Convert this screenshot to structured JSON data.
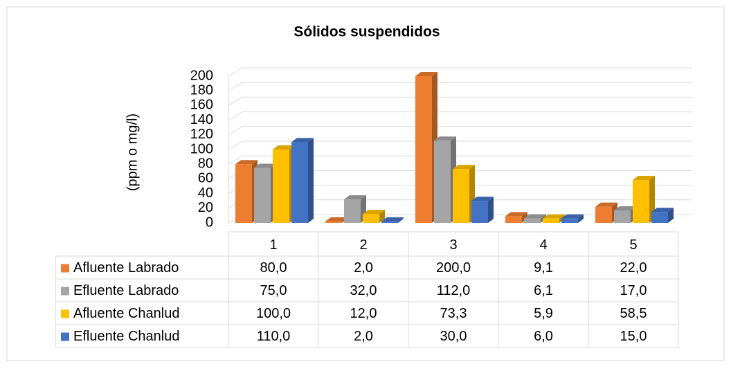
{
  "chart_data": {
    "type": "bar3d",
    "title": "Sólidos suspendidos",
    "ylabel": "(ppm o mg/l)",
    "categories": [
      "1",
      "2",
      "3",
      "4",
      "5"
    ],
    "series": [
      {
        "name": "Afluente Labrado",
        "color": "#ED7D31",
        "values": [
          80.0,
          2.0,
          200.0,
          9.1,
          22.0
        ],
        "value_labels": [
          "80,0",
          "2,0",
          "200,0",
          "9,1",
          "22,0"
        ]
      },
      {
        "name": "Efluente Labrado",
        "color": "#A5A5A5",
        "values": [
          75.0,
          32.0,
          112.0,
          6.1,
          17.0
        ],
        "value_labels": [
          "75,0",
          "32,0",
          "112,0",
          "6,1",
          "17,0"
        ]
      },
      {
        "name": "Afluente Chanlud",
        "color": "#FFC000",
        "values": [
          100.0,
          12.0,
          73.3,
          5.9,
          58.5
        ],
        "value_labels": [
          "100,0",
          "12,0",
          "73,3",
          "5,9",
          "58,5"
        ]
      },
      {
        "name": "Efluente Chanlud",
        "color": "#4472C4",
        "values": [
          110.0,
          2.0,
          30.0,
          6.0,
          15.0
        ],
        "value_labels": [
          "110,0",
          "2,0",
          "30,0",
          "6,0",
          "15,0"
        ]
      }
    ],
    "ylim": [
      0,
      200
    ],
    "yticks": [
      0,
      20,
      40,
      60,
      80,
      100,
      120,
      140,
      160,
      180,
      200
    ],
    "grid": true
  }
}
